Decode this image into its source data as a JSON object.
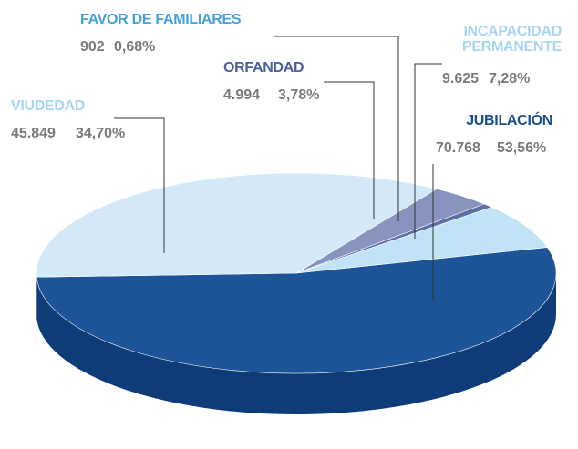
{
  "chart_data": {
    "type": "pie3d",
    "categories": [
      "JUBILACIÓN",
      "VIUDEDAD",
      "ORFANDAD",
      "FAVOR DE FAMILIARES",
      "INCAPACIDAD PERMANENTE"
    ],
    "values": [
      70768,
      45849,
      4994,
      902,
      9625
    ],
    "value_labels": [
      "70.768",
      "45.849",
      "4.994",
      "902",
      "9.625"
    ],
    "percentages": [
      53.56,
      34.7,
      3.78,
      0.68,
      7.28
    ],
    "percentage_labels": [
      "53,56%",
      "34,70%",
      "3,78%",
      "0,68%",
      "7,28%"
    ],
    "colors": [
      "#1d5497",
      "#d3e9f8",
      "#8794bd",
      "#5d6fa6",
      "#c2e2f6"
    ],
    "side_colors": [
      "#0e3c78",
      "#aed5ef",
      "#66769f",
      "#4a5a8c",
      "#9ccbea"
    ],
    "label_colors": [
      "#1a4f8f",
      "#a6d6f0",
      "#4b5f9c",
      "#41a0de",
      "#a6d6f0"
    ]
  }
}
